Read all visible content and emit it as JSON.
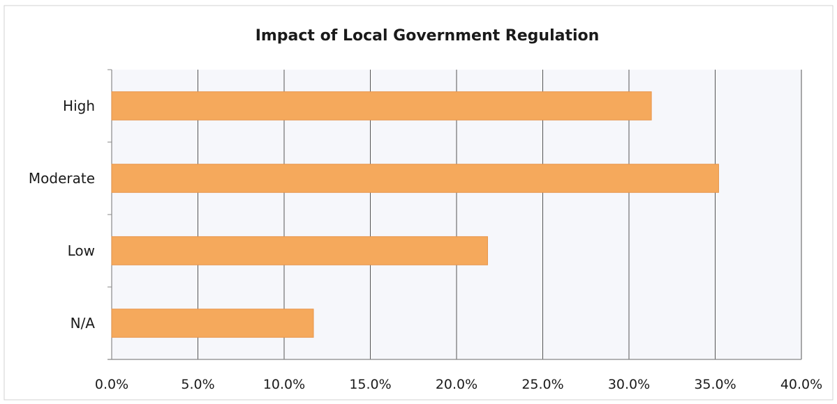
{
  "chart_data": {
    "type": "bar",
    "orientation": "horizontal",
    "title": "Impact of Local Government Regulation",
    "xlabel": "",
    "ylabel": "",
    "categories": [
      "High",
      "Moderate",
      "Low",
      "N/A"
    ],
    "values": [
      31.3,
      35.2,
      21.8,
      11.7
    ],
    "value_unit": "%",
    "xlim": [
      0,
      40
    ],
    "x_ticks": [
      "0.0%",
      "5.0%",
      "10.0%",
      "15.0%",
      "20.0%",
      "25.0%",
      "30.0%",
      "35.0%",
      "40.0%"
    ],
    "grid": "vertical",
    "legend": "none",
    "colors": {
      "bar": "#f5a95c",
      "bar_edge": "#e8954a",
      "plot_background": "#f6f7fb",
      "gridline": "#555555",
      "frame": "#d0d0d0"
    }
  }
}
